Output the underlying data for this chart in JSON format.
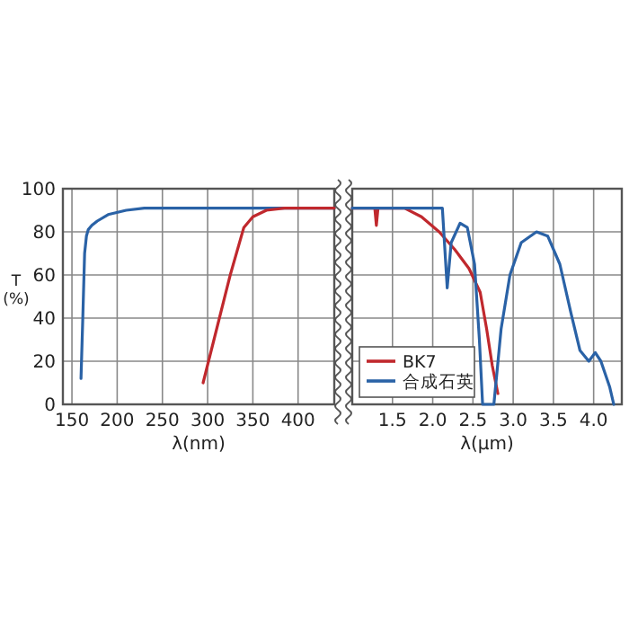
{
  "chart_data": [
    {
      "type": "line",
      "xlabel": "λ(nm)",
      "ylabel": "T (%)",
      "xlim": [
        140,
        440
      ],
      "xticks": [
        150,
        200,
        250,
        300,
        350,
        400
      ],
      "ylim": [
        0,
        100
      ],
      "yticks": [
        0,
        20,
        40,
        60,
        80,
        100
      ],
      "grid": true,
      "line_style": "solid",
      "marker": "none",
      "series": [
        {
          "color": "#2a62a6",
          "x": [
            160,
            162,
            164,
            166,
            168,
            172,
            178,
            190,
            210,
            230,
            300,
            440
          ],
          "values": [
            12,
            40,
            70,
            78,
            81,
            83,
            85,
            88,
            90,
            91,
            91,
            91
          ]
        },
        {
          "color": "#c0282d",
          "x": [
            295,
            310,
            325,
            340,
            350,
            365,
            385,
            440
          ],
          "values": [
            10,
            35,
            60,
            82,
            87,
            90,
            91,
            91
          ]
        }
      ]
    },
    {
      "type": "line",
      "xlabel": "λ(μm)",
      "xlim": [
        1.0,
        4.35
      ],
      "xticks": [
        1.5,
        {
          "value": 2,
          "label": "2.0"
        },
        2.5,
        {
          "value": 3,
          "label": "3.0"
        },
        3.5,
        {
          "value": 4,
          "label": "4.0"
        }
      ],
      "ylim": [
        0,
        100
      ],
      "yticks": [
        0,
        20,
        40,
        60,
        80,
        100
      ],
      "grid": true,
      "tick_labels": "x",
      "legend": "bottom left",
      "line_style": "solid",
      "marker": "none",
      "series": [
        {
          "name": "BK7",
          "color": "#c0282d",
          "x": [
            1.0,
            1.28,
            1.3,
            1.32,
            1.65,
            1.86,
            2.08,
            2.27,
            2.45,
            2.59,
            2.67,
            2.74,
            2.81
          ],
          "values": [
            91,
            91,
            83,
            91,
            91,
            87,
            80,
            72,
            63,
            52,
            35,
            18,
            5
          ]
        },
        {
          "name": "合成石英",
          "color": "#2a62a6",
          "x": [
            1.0,
            2.12,
            2.18,
            2.23,
            2.34,
            2.43,
            2.52,
            2.58,
            2.62,
            2.76,
            2.85,
            2.96,
            3.1,
            3.29,
            3.43,
            3.58,
            3.72,
            3.83,
            3.94,
            4.02,
            4.09,
            4.2,
            4.25
          ],
          "values": [
            91,
            91,
            54,
            75,
            84,
            82,
            65,
            30,
            0,
            0,
            35,
            60,
            75,
            80,
            78,
            65,
            42,
            25,
            20,
            24,
            20,
            8,
            0
          ]
        }
      ]
    }
  ]
}
